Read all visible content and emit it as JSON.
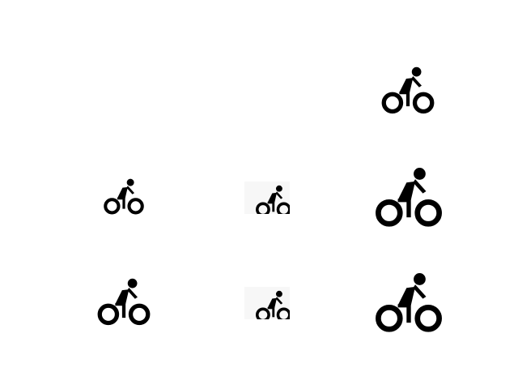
{
  "icons": [
    {
      "name": "bicycle-icon",
      "row": 1,
      "col": 3
    },
    {
      "name": "bicycle-icon",
      "row": 2,
      "col": 1
    },
    {
      "name": "bicycle-icon",
      "row": 2,
      "col": 2
    },
    {
      "name": "bicycle-icon",
      "row": 2,
      "col": 3
    },
    {
      "name": "bicycle-icon",
      "row": 3,
      "col": 1
    },
    {
      "name": "bicycle-icon",
      "row": 3,
      "col": 2
    },
    {
      "name": "bicycle-icon",
      "row": 3,
      "col": 3
    }
  ],
  "colors": {
    "background": "#ffffff",
    "icon": "#000000",
    "tile": "#f7f7f7"
  }
}
